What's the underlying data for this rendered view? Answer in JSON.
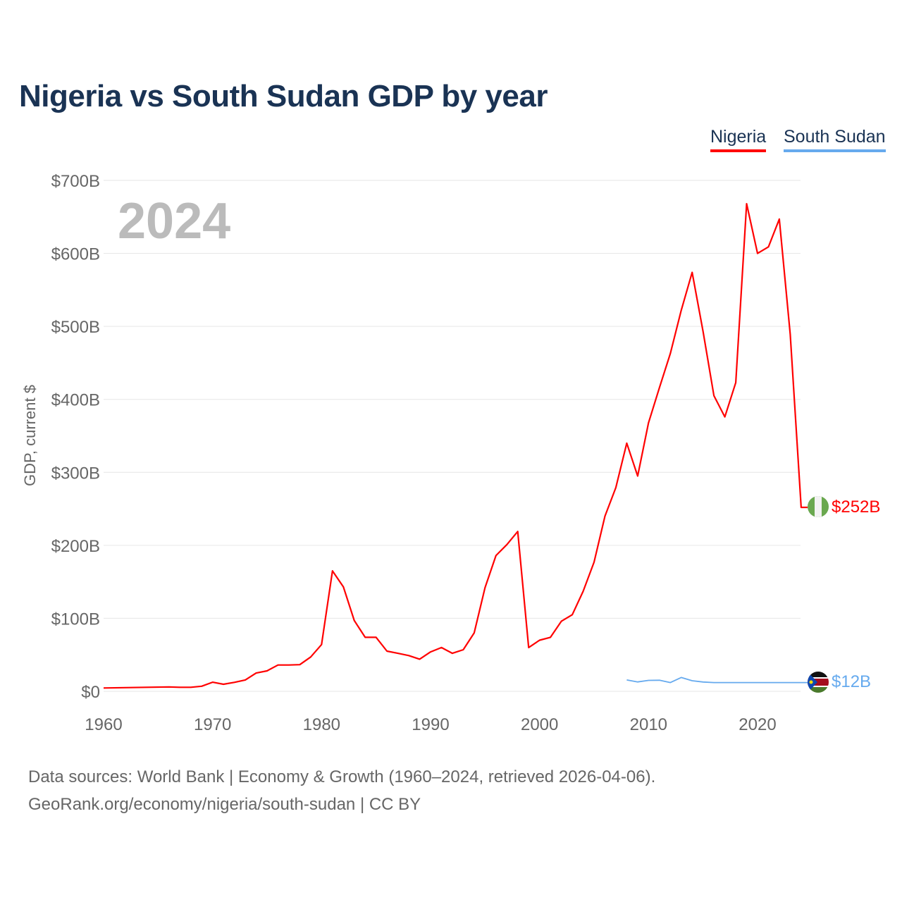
{
  "title": "Nigeria vs South Sudan GDP by year",
  "legend": [
    {
      "name": "Nigeria",
      "color": "#ff0000"
    },
    {
      "name": "South Sudan",
      "color": "#66aaee"
    }
  ],
  "footer": {
    "line1": "Data sources: World Bank | Economy & Growth (1960–2024, retrieved 2026-04-06).",
    "line2": "GeoRank.org/economy/nigeria/south-sudan | CC BY"
  },
  "chart_data": {
    "type": "line",
    "title": "Nigeria vs South Sudan GDP by year",
    "ylabel": "GDP, current $",
    "xlabel": "",
    "year_label": "2024",
    "ylim": [
      0,
      700
    ],
    "xlim": [
      1960,
      2024
    ],
    "yticks": [
      {
        "v": 0,
        "label": "$0"
      },
      {
        "v": 100,
        "label": "$100B"
      },
      {
        "v": 200,
        "label": "$200B"
      },
      {
        "v": 300,
        "label": "$300B"
      },
      {
        "v": 400,
        "label": "$400B"
      },
      {
        "v": 500,
        "label": "$500B"
      },
      {
        "v": 600,
        "label": "$600B"
      },
      {
        "v": 700,
        "label": "$700B"
      }
    ],
    "xticks": [
      1960,
      1970,
      1980,
      1990,
      2000,
      2010,
      2020
    ],
    "grid": true,
    "series": [
      {
        "name": "Nigeria",
        "color": "#ff0000",
        "end_label": "$252B",
        "flag": "nigeria-flag",
        "x": [
          1960,
          1966,
          1967,
          1968,
          1969,
          1970,
          1971,
          1972,
          1973,
          1974,
          1975,
          1976,
          1977,
          1978,
          1979,
          1980,
          1981,
          1982,
          1983,
          1984,
          1985,
          1986,
          1987,
          1988,
          1989,
          1990,
          1991,
          1992,
          1993,
          1994,
          1995,
          1996,
          1997,
          1998,
          1999,
          2000,
          2001,
          2002,
          2003,
          2004,
          2005,
          2006,
          2007,
          2008,
          2009,
          2010,
          2011,
          2012,
          2013,
          2014,
          2015,
          2016,
          2017,
          2018,
          2019,
          2020,
          2021,
          2022,
          2023,
          2024
        ],
        "values": [
          4.5,
          6,
          5.5,
          5.5,
          7,
          12.5,
          9.7,
          12.3,
          15.5,
          25,
          28,
          36,
          36,
          36.5,
          47,
          64,
          165,
          143,
          97,
          74,
          74,
          55,
          52,
          49,
          44,
          54,
          60,
          52,
          57,
          80,
          142,
          186,
          201,
          219,
          60,
          70,
          74,
          96,
          105,
          137,
          177,
          240,
          279,
          340,
          295,
          368,
          416,
          463,
          522,
          574,
          493,
          405,
          376,
          423,
          668,
          600,
          609,
          647,
          489,
          252
        ]
      },
      {
        "name": "South Sudan",
        "color": "#66aaee",
        "end_label": "$12B",
        "flag": "south-sudan-flag",
        "x": [
          2008,
          2009,
          2010,
          2011,
          2012,
          2013,
          2014,
          2015,
          2016,
          2017,
          2018,
          2019,
          2020,
          2021,
          2022,
          2023,
          2024
        ],
        "values": [
          15.5,
          12.8,
          15,
          15.2,
          12,
          18.9,
          14.5,
          12.7,
          12,
          12,
          12,
          12,
          12,
          12,
          12,
          12,
          12
        ]
      }
    ]
  }
}
